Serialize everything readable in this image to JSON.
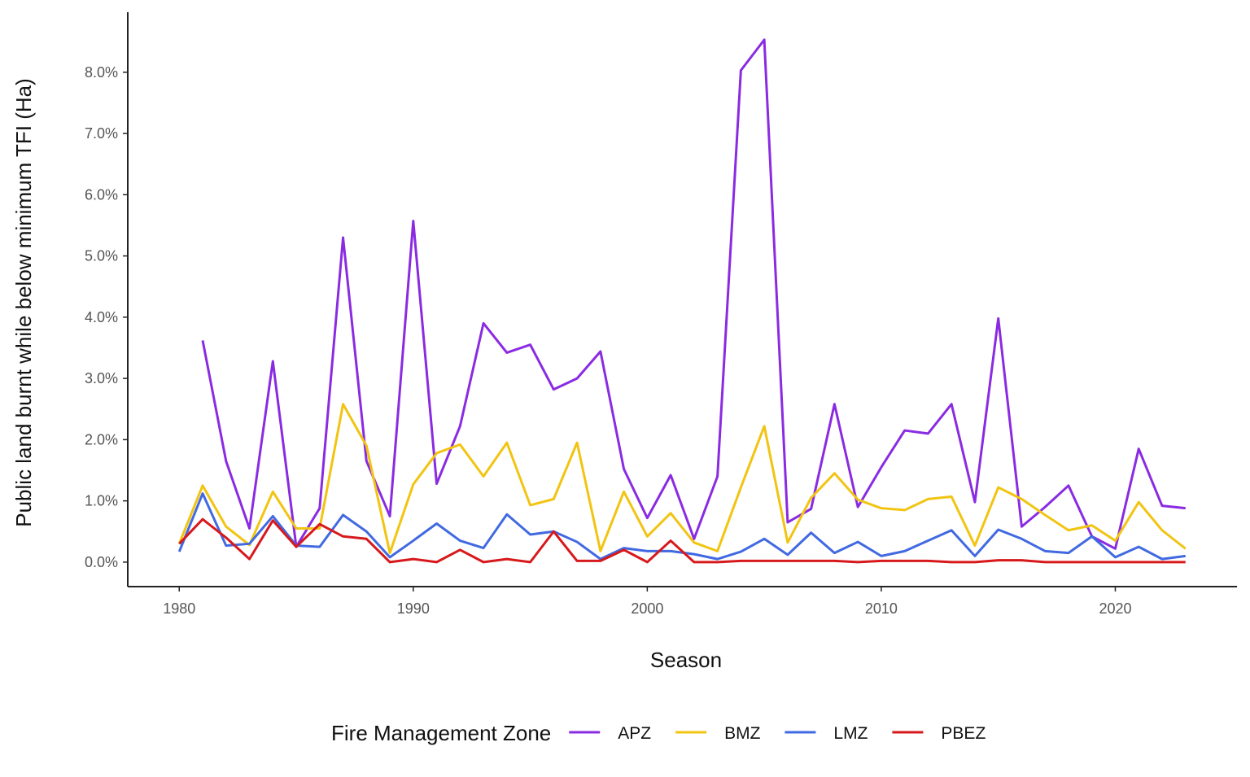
{
  "chart_data": {
    "type": "line",
    "x_label": "Season",
    "y_label": "Public land burnt while below minimum TFI (Ha)",
    "legend_title": "Fire Management Zone",
    "legend_position": "bottom",
    "x": [
      1980,
      1981,
      1982,
      1983,
      1984,
      1985,
      1986,
      1987,
      1988,
      1989,
      1990,
      1991,
      1992,
      1993,
      1994,
      1995,
      1996,
      1997,
      1998,
      1999,
      2000,
      2001,
      2002,
      2003,
      2004,
      2005,
      2006,
      2007,
      2008,
      2009,
      2010,
      2011,
      2012,
      2013,
      2014,
      2015,
      2016,
      2017,
      2018,
      2019,
      2020,
      2021,
      2022,
      2023
    ],
    "xlim": [
      1977.8,
      2025.2
    ],
    "xticks": [
      1980,
      1990,
      2000,
      2010,
      2020
    ],
    "ylim": [
      -0.4,
      8.98
    ],
    "yticks": [
      {
        "value": 0,
        "label": "0.0%"
      },
      {
        "value": 1,
        "label": "1.0%"
      },
      {
        "value": 2,
        "label": "2.0%"
      },
      {
        "value": 3,
        "label": "3.0%"
      },
      {
        "value": 4,
        "label": "4.0%"
      },
      {
        "value": 5,
        "label": "5.0%"
      },
      {
        "value": 6,
        "label": "6.0%"
      },
      {
        "value": 7,
        "label": "7.0%"
      },
      {
        "value": 8,
        "label": "8.0%"
      }
    ],
    "grid": false,
    "series": [
      {
        "name": "APZ",
        "color": "#8a2be2",
        "values": [
          null,
          3.62,
          1.65,
          0.55,
          3.28,
          0.25,
          0.88,
          5.3,
          1.65,
          0.75,
          5.57,
          1.28,
          2.22,
          3.9,
          3.42,
          3.55,
          2.82,
          3.0,
          3.44,
          1.52,
          0.72,
          1.42,
          0.38,
          1.4,
          8.03,
          8.53,
          0.65,
          0.87,
          2.58,
          0.9,
          1.55,
          2.15,
          2.1,
          2.58,
          0.98,
          3.98,
          0.58,
          0.9,
          1.25,
          0.42,
          0.22,
          1.85,
          0.92,
          0.88
        ]
      },
      {
        "name": "BMZ",
        "color": "#f2c412",
        "values": [
          0.3,
          1.25,
          0.58,
          0.28,
          1.15,
          0.55,
          0.55,
          2.58,
          1.9,
          0.15,
          1.27,
          1.78,
          1.92,
          1.4,
          1.95,
          0.93,
          1.03,
          1.95,
          0.18,
          1.15,
          0.42,
          0.8,
          0.32,
          0.18,
          1.22,
          2.22,
          0.32,
          1.05,
          1.45,
          1.02,
          0.88,
          0.85,
          1.03,
          1.07,
          0.27,
          1.22,
          1.03,
          0.77,
          0.52,
          0.6,
          0.35,
          0.98,
          0.52,
          0.22
        ]
      },
      {
        "name": "LMZ",
        "color": "#4169e1",
        "values": [
          0.17,
          1.12,
          0.27,
          0.3,
          0.75,
          0.27,
          0.25,
          0.77,
          0.5,
          0.08,
          0.35,
          0.63,
          0.35,
          0.23,
          0.78,
          0.45,
          0.5,
          0.33,
          0.05,
          0.23,
          0.18,
          0.18,
          0.13,
          0.05,
          0.17,
          0.38,
          0.12,
          0.48,
          0.15,
          0.33,
          0.1,
          0.18,
          0.35,
          0.52,
          0.1,
          0.53,
          0.38,
          0.18,
          0.15,
          0.42,
          0.08,
          0.25,
          0.05,
          0.1
        ]
      },
      {
        "name": "PBEZ",
        "color": "#d7191c",
        "values": [
          0.3,
          0.7,
          0.4,
          0.05,
          0.68,
          0.25,
          0.62,
          0.42,
          0.38,
          0.0,
          0.05,
          0.0,
          0.2,
          0.0,
          0.05,
          0.0,
          0.5,
          0.02,
          0.02,
          0.2,
          0.0,
          0.35,
          0.0,
          0.0,
          0.02,
          0.02,
          0.02,
          0.02,
          0.02,
          0.0,
          0.02,
          0.02,
          0.02,
          0.0,
          0.0,
          0.03,
          0.03,
          0.0,
          0.0,
          0.0,
          0.0,
          0.0,
          0.0,
          0.0
        ]
      }
    ]
  }
}
